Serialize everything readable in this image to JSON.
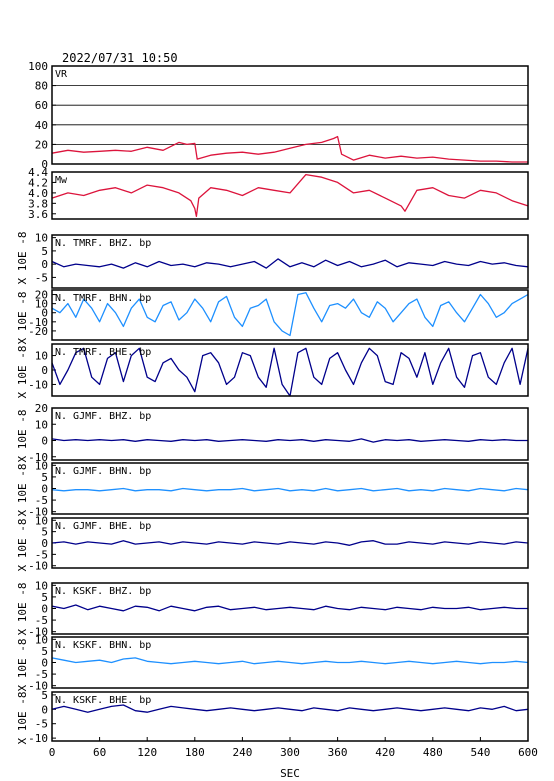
{
  "chart_data": {
    "type": "line",
    "title": "2022/07/31  10:50",
    "xlabel": "SEC",
    "ylabel": "X 10E -8",
    "xlim": [
      0,
      600
    ],
    "xticks": [
      "0",
      "60",
      "120",
      "180",
      "240",
      "300",
      "360",
      "420",
      "480",
      "540",
      "600"
    ],
    "panels": [
      {
        "name": "VR",
        "ylim": [
          0,
          100
        ],
        "yticks": [
          "0",
          "20",
          "40",
          "60",
          "80",
          "100"
        ],
        "grid": true,
        "color": "#dc143c",
        "x": [
          0,
          20,
          40,
          60,
          80,
          100,
          120,
          140,
          160,
          170,
          180,
          183,
          200,
          220,
          240,
          260,
          280,
          300,
          320,
          340,
          355,
          360,
          365,
          380,
          400,
          420,
          440,
          460,
          480,
          500,
          520,
          540,
          560,
          580,
          600
        ],
        "y": [
          11,
          14,
          12,
          13,
          14,
          13,
          17,
          14,
          22,
          20,
          21,
          5,
          9,
          11,
          12,
          10,
          12,
          16,
          20,
          22,
          26,
          28,
          10,
          4,
          9,
          6,
          8,
          6,
          7,
          5,
          4,
          3,
          3,
          2,
          2
        ]
      },
      {
        "name": "Mw",
        "ylim": [
          3.5,
          4.4
        ],
        "yticks": [
          "3.6",
          "3.8",
          "4.0",
          "4.2",
          "4.4"
        ],
        "color": "#dc143c",
        "x": [
          0,
          20,
          40,
          60,
          80,
          100,
          120,
          140,
          160,
          175,
          180,
          182,
          185,
          200,
          220,
          240,
          260,
          280,
          300,
          320,
          340,
          360,
          380,
          400,
          420,
          440,
          445,
          460,
          480,
          500,
          520,
          540,
          560,
          580,
          600
        ],
        "y": [
          3.9,
          4.0,
          3.95,
          4.05,
          4.1,
          4.0,
          4.15,
          4.1,
          4.0,
          3.85,
          3.7,
          3.55,
          3.9,
          4.1,
          4.05,
          3.95,
          4.1,
          4.05,
          4.0,
          4.35,
          4.3,
          4.2,
          4.0,
          4.05,
          3.9,
          3.75,
          3.65,
          4.05,
          4.1,
          3.95,
          3.9,
          4.05,
          4.0,
          3.85,
          3.75
        ]
      },
      {
        "name": "N. TMRF. BHZ. bp",
        "ylim": [
          -9,
          11
        ],
        "yticks": [
          "10",
          "5",
          "0",
          "-5"
        ],
        "color": "#00008b",
        "x": [
          0,
          15,
          30,
          45,
          60,
          75,
          90,
          105,
          120,
          135,
          150,
          165,
          180,
          195,
          210,
          225,
          240,
          255,
          270,
          285,
          300,
          315,
          330,
          345,
          360,
          375,
          390,
          405,
          420,
          435,
          450,
          465,
          480,
          495,
          510,
          525,
          540,
          555,
          570,
          585,
          600
        ],
        "y": [
          1,
          -1,
          0,
          -0.5,
          -1,
          0,
          -1.5,
          0.5,
          -1,
          1,
          -0.5,
          0,
          -1,
          0.5,
          0,
          -1,
          0,
          1,
          -1.5,
          2,
          -1,
          0.5,
          -1,
          1.5,
          -0.5,
          1,
          -1,
          0,
          1.5,
          -1,
          0.5,
          0,
          -0.5,
          1,
          0,
          -0.5,
          1,
          0,
          0.5,
          -0.5,
          -1
        ]
      },
      {
        "name": "N. TMRF. BHN. bp",
        "ylim": [
          -30,
          25
        ],
        "yticks": [
          "20",
          "10",
          "0",
          "-10",
          "-20"
        ],
        "color": "#1e90ff",
        "x": [
          0,
          10,
          20,
          30,
          40,
          50,
          60,
          70,
          80,
          90,
          100,
          110,
          120,
          130,
          140,
          150,
          160,
          170,
          180,
          190,
          200,
          210,
          220,
          230,
          240,
          250,
          260,
          270,
          280,
          290,
          300,
          310,
          320,
          330,
          340,
          350,
          360,
          370,
          380,
          390,
          400,
          410,
          420,
          430,
          440,
          450,
          460,
          470,
          480,
          490,
          500,
          510,
          520,
          530,
          540,
          550,
          560,
          570,
          580,
          590,
          600
        ],
        "y": [
          5,
          0,
          10,
          -5,
          15,
          5,
          -10,
          10,
          0,
          -15,
          5,
          15,
          -5,
          -10,
          8,
          12,
          -8,
          0,
          15,
          5,
          -10,
          12,
          18,
          -5,
          -15,
          5,
          8,
          15,
          -10,
          -20,
          -25,
          20,
          22,
          5,
          -10,
          8,
          10,
          5,
          15,
          0,
          -5,
          12,
          5,
          -10,
          0,
          10,
          15,
          -5,
          -15,
          8,
          12,
          0,
          -10,
          5,
          20,
          10,
          -5,
          0,
          10,
          15,
          20
        ]
      },
      {
        "name": "N. TMRF. BHE. bp",
        "ylim": [
          -18,
          18
        ],
        "yticks": [
          "10",
          "0",
          "-10"
        ],
        "color": "#00008b",
        "x": [
          0,
          10,
          20,
          30,
          40,
          50,
          60,
          70,
          80,
          90,
          100,
          110,
          120,
          130,
          140,
          150,
          160,
          170,
          180,
          190,
          200,
          210,
          220,
          230,
          240,
          250,
          260,
          270,
          280,
          290,
          300,
          310,
          320,
          330,
          340,
          350,
          360,
          370,
          380,
          390,
          400,
          410,
          420,
          430,
          440,
          450,
          460,
          470,
          480,
          490,
          500,
          510,
          520,
          530,
          540,
          550,
          560,
          570,
          580,
          590,
          600
        ],
        "y": [
          5,
          -10,
          0,
          12,
          15,
          -5,
          -10,
          8,
          12,
          -8,
          10,
          15,
          -5,
          -8,
          5,
          8,
          0,
          -5,
          -15,
          10,
          12,
          5,
          -10,
          -5,
          12,
          10,
          -5,
          -12,
          15,
          -10,
          -18,
          12,
          15,
          -5,
          -10,
          8,
          12,
          0,
          -10,
          5,
          15,
          10,
          -8,
          -10,
          12,
          8,
          -5,
          12,
          -10,
          5,
          15,
          -5,
          -12,
          10,
          12,
          -5,
          -10,
          5,
          15,
          -10,
          15
        ]
      },
      {
        "name": "N. GJMF. BHZ. bp",
        "ylim": [
          -12,
          20
        ],
        "yticks": [
          "20",
          "10",
          "0",
          "-10"
        ],
        "color": "#00008b",
        "x": [
          0,
          15,
          30,
          45,
          60,
          75,
          90,
          105,
          120,
          135,
          150,
          165,
          180,
          195,
          210,
          225,
          240,
          255,
          270,
          285,
          300,
          315,
          330,
          345,
          360,
          375,
          390,
          405,
          420,
          435,
          450,
          465,
          480,
          495,
          510,
          525,
          540,
          555,
          570,
          585,
          600
        ],
        "y": [
          1,
          0,
          0.5,
          0,
          0.5,
          0,
          0.5,
          -0.5,
          0.5,
          0,
          -0.5,
          0.5,
          0,
          0.5,
          -0.5,
          0,
          0.5,
          0,
          -0.5,
          0.5,
          0,
          0.5,
          -0.5,
          0.5,
          0,
          -0.5,
          1,
          -1,
          0.5,
          0,
          0.5,
          -0.5,
          0,
          0.5,
          0,
          -0.5,
          0.5,
          0,
          0.5,
          0,
          0
        ]
      },
      {
        "name": "N. GJMF. BHN. bp",
        "ylim": [
          -11,
          11
        ],
        "yticks": [
          "10",
          "5",
          "0",
          "-5",
          "-10"
        ],
        "color": "#1e90ff",
        "x": [
          0,
          15,
          30,
          45,
          60,
          75,
          90,
          105,
          120,
          135,
          150,
          165,
          180,
          195,
          210,
          225,
          240,
          255,
          270,
          285,
          300,
          315,
          330,
          345,
          360,
          375,
          390,
          405,
          420,
          435,
          450,
          465,
          480,
          495,
          510,
          525,
          540,
          555,
          570,
          585,
          600
        ],
        "y": [
          -0.5,
          -1,
          -0.5,
          -0.5,
          -1,
          -0.5,
          0,
          -1,
          -0.5,
          -0.5,
          -1,
          0,
          -0.5,
          -1,
          -0.5,
          -0.5,
          0,
          -1,
          -0.5,
          0,
          -1,
          -0.5,
          -1,
          0,
          -1,
          -0.5,
          0,
          -1,
          -0.5,
          0,
          -1,
          -0.5,
          -1,
          0,
          -0.5,
          -1,
          0,
          -0.5,
          -1,
          0,
          -0.5
        ]
      },
      {
        "name": "N. GJMF. BHE. bp",
        "ylim": [
          -11,
          11
        ],
        "yticks": [
          "10",
          "5",
          "0",
          "-5",
          "-10"
        ],
        "color": "#00008b",
        "x": [
          0,
          15,
          30,
          45,
          60,
          75,
          90,
          105,
          120,
          135,
          150,
          165,
          180,
          195,
          210,
          225,
          240,
          255,
          270,
          285,
          300,
          315,
          330,
          345,
          360,
          375,
          390,
          405,
          420,
          435,
          450,
          465,
          480,
          495,
          510,
          525,
          540,
          555,
          570,
          585,
          600
        ],
        "y": [
          0,
          0.5,
          -0.5,
          0.5,
          0,
          -0.5,
          1,
          -0.5,
          0,
          0.5,
          -0.5,
          0.5,
          0,
          -0.5,
          0.5,
          0,
          -0.5,
          0.5,
          0,
          -0.5,
          0.5,
          0,
          -0.5,
          0.5,
          0,
          -1,
          0.5,
          1,
          -0.5,
          -0.5,
          0.5,
          0,
          -0.5,
          0.5,
          0,
          -0.5,
          0.5,
          0,
          -0.5,
          0.5,
          0
        ]
      },
      {
        "name": "N. KSKF. BHZ. bp",
        "ylim": [
          -11,
          11
        ],
        "yticks": [
          "10",
          "5",
          "0",
          "-5",
          "-10"
        ],
        "color": "#00008b",
        "x": [
          0,
          15,
          30,
          45,
          60,
          75,
          90,
          105,
          120,
          135,
          150,
          165,
          180,
          195,
          210,
          225,
          240,
          255,
          270,
          285,
          300,
          315,
          330,
          345,
          360,
          375,
          390,
          405,
          420,
          435,
          450,
          465,
          480,
          495,
          510,
          525,
          540,
          555,
          570,
          585,
          600
        ],
        "y": [
          1,
          0,
          1.5,
          -0.5,
          1,
          0,
          -1,
          1,
          0.5,
          -1,
          1,
          0,
          -1,
          0.5,
          1,
          -0.5,
          0,
          0.5,
          -0.5,
          0,
          0.5,
          0,
          -0.5,
          1,
          0,
          -0.5,
          0.5,
          0,
          -0.5,
          0.5,
          0,
          -0.5,
          0.5,
          0,
          0,
          0.5,
          -0.5,
          0,
          0.5,
          0,
          0
        ]
      },
      {
        "name": "N. KSKF. BHN. bp",
        "ylim": [
          -11,
          11
        ],
        "yticks": [
          "10",
          "5",
          "0",
          "-5",
          "-10"
        ],
        "color": "#1e90ff",
        "x": [
          0,
          15,
          30,
          45,
          60,
          75,
          90,
          105,
          120,
          135,
          150,
          165,
          180,
          195,
          210,
          225,
          240,
          255,
          270,
          285,
          300,
          315,
          330,
          345,
          360,
          375,
          390,
          405,
          420,
          435,
          450,
          465,
          480,
          495,
          510,
          525,
          540,
          555,
          570,
          585,
          600
        ],
        "y": [
          2,
          1,
          0,
          0.5,
          1,
          0,
          1.5,
          2,
          0.5,
          0,
          -0.5,
          0,
          0.5,
          0,
          -0.5,
          0,
          0.5,
          -0.5,
          0,
          0.5,
          0,
          -0.5,
          0,
          0.5,
          0,
          0,
          0.5,
          0,
          -0.5,
          0,
          0.5,
          0,
          -0.5,
          0,
          0.5,
          0,
          -0.5,
          0,
          0,
          0.5,
          0
        ]
      },
      {
        "name": "N. KSKF. BHE. bp",
        "ylim": [
          -11,
          6
        ],
        "yticks": [
          "5",
          "0",
          "-5",
          "-10"
        ],
        "color": "#00008b",
        "x": [
          0,
          15,
          30,
          45,
          60,
          75,
          90,
          105,
          120,
          135,
          150,
          165,
          180,
          195,
          210,
          225,
          240,
          255,
          270,
          285,
          300,
          315,
          330,
          345,
          360,
          375,
          390,
          405,
          420,
          435,
          450,
          465,
          480,
          495,
          510,
          525,
          540,
          555,
          570,
          585,
          600
        ],
        "y": [
          0,
          1,
          0,
          -1,
          0,
          1,
          1.5,
          -0.5,
          -1,
          0,
          1,
          0.5,
          0,
          -0.5,
          0,
          0.5,
          0,
          -0.5,
          0,
          0.5,
          0,
          -0.5,
          0.5,
          0,
          -0.5,
          0.5,
          0,
          -0.5,
          0,
          0.5,
          0,
          -0.5,
          0,
          0.5,
          0,
          -0.5,
          0.5,
          0,
          1,
          -0.5,
          0
        ]
      }
    ]
  }
}
